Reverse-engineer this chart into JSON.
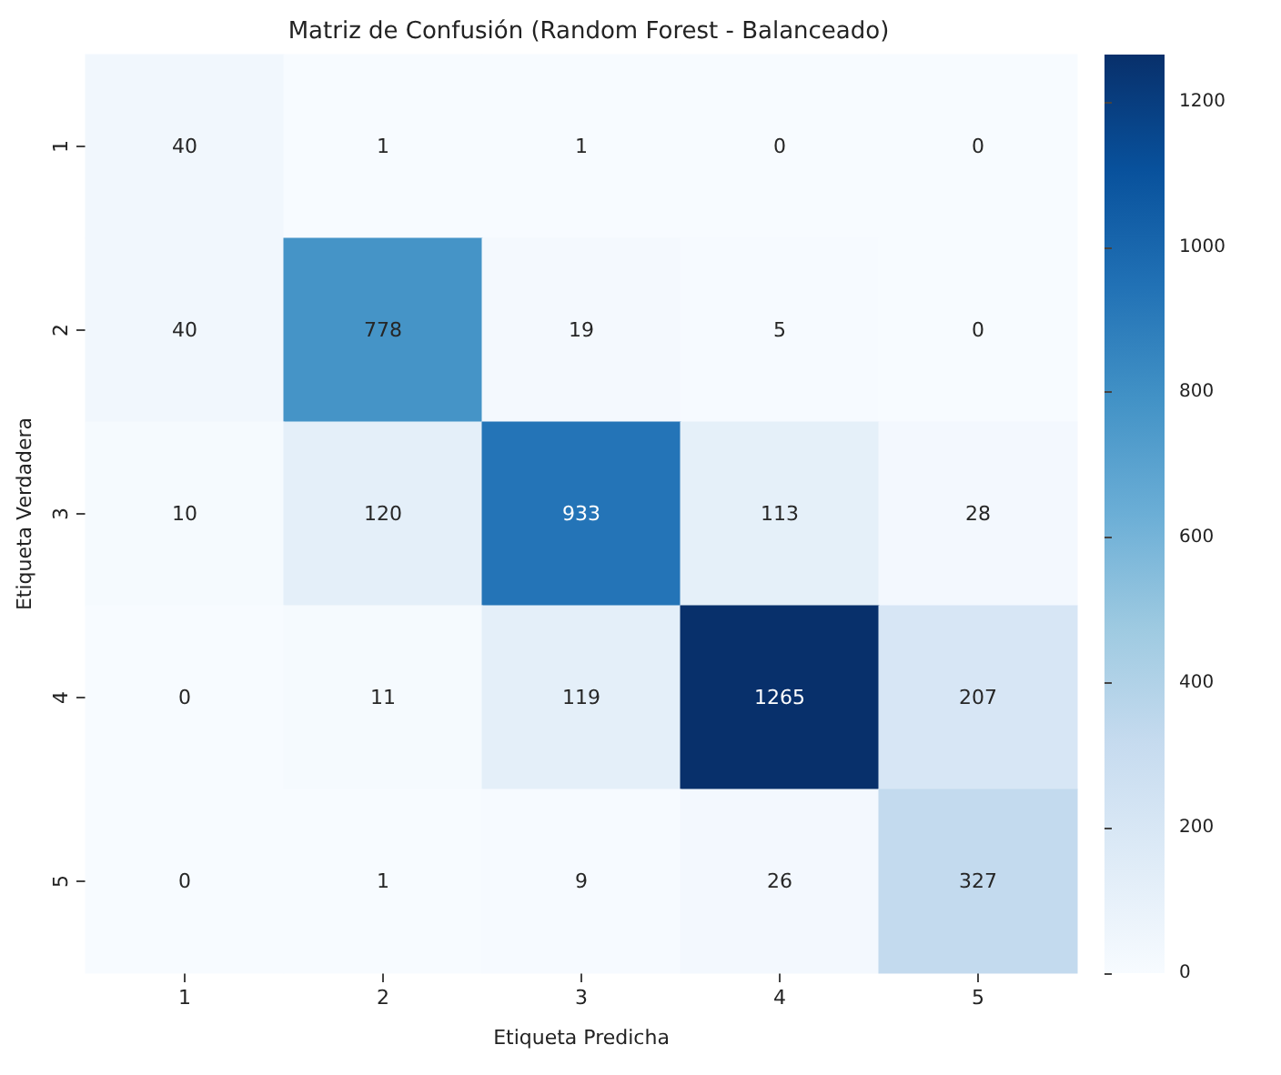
{
  "chart_data": {
    "type": "heatmap",
    "title": "Matriz de Confusión (Random Forest - Balanceado)",
    "xlabel": "Etiqueta Predicha",
    "ylabel": "Etiqueta Verdadera",
    "categories": [
      "1",
      "2",
      "3",
      "4",
      "5"
    ],
    "y_categories": [
      "1",
      "2",
      "3",
      "4",
      "5"
    ],
    "cells": [
      [
        40,
        1,
        1,
        0,
        0
      ],
      [
        40,
        778,
        19,
        5,
        0
      ],
      [
        10,
        120,
        933,
        113,
        28
      ],
      [
        0,
        11,
        119,
        1265,
        207
      ],
      [
        0,
        1,
        9,
        26,
        327
      ]
    ],
    "clim": [
      0,
      1265
    ],
    "cticks": [
      0,
      200,
      400,
      600,
      800,
      1000,
      1200
    ],
    "data_labels": true
  }
}
